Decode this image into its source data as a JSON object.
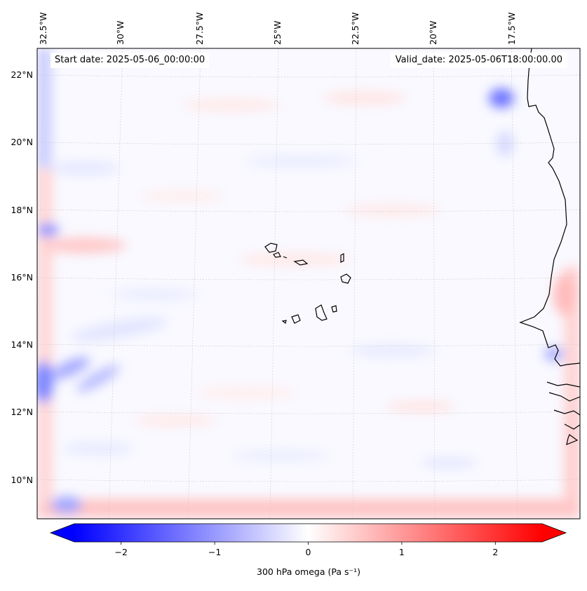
{
  "map": {
    "start_label": "Start date: 2025-05-06_00:00:00",
    "valid_label": "Valid_date: 2025-05-06T18:00:00.00",
    "lon_labels": [
      "32.5°W",
      "30°W",
      "27.5°W",
      "25°W",
      "22.5°W",
      "20°W",
      "17.5°W"
    ],
    "lat_labels": [
      "22°N",
      "20°N",
      "18°N",
      "16°N",
      "14°N",
      "12°N",
      "10°N"
    ],
    "colorbar": {
      "ticks": [
        "−2",
        "−1",
        "0",
        "1",
        "2"
      ],
      "tick_values": [
        -2,
        -1,
        0,
        1,
        2
      ],
      "range": [
        -2.5,
        2.5
      ],
      "label": "300 hPa omega (Pa s⁻¹)",
      "cmap": "bwr",
      "neg_color": "#0000ff",
      "mid_color": "#ffffff",
      "pos_color": "#ff0000"
    },
    "style": {
      "coast_color": "#000000",
      "grid_color": "#cccccc"
    }
  }
}
